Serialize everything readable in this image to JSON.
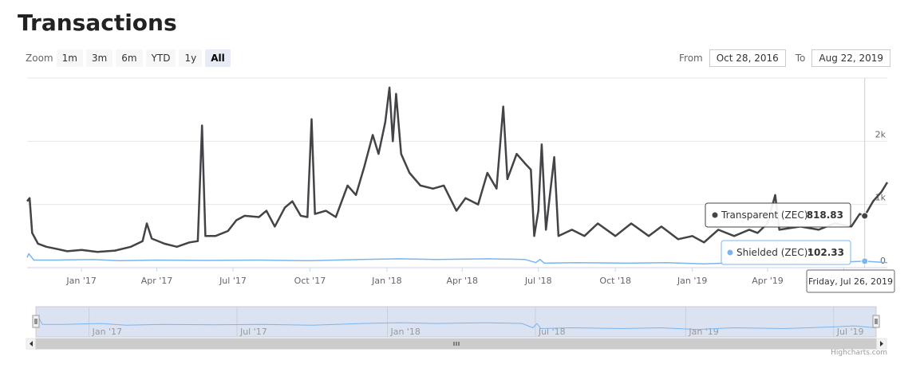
{
  "page": {
    "title": "Transactions"
  },
  "range_selector": {
    "zoom_label": "Zoom",
    "buttons": [
      {
        "label": "1m",
        "active": false
      },
      {
        "label": "3m",
        "active": false
      },
      {
        "label": "6m",
        "active": false
      },
      {
        "label": "YTD",
        "active": false
      },
      {
        "label": "1y",
        "active": false
      },
      {
        "label": "All",
        "active": true
      }
    ],
    "from_label": "From",
    "from_value": "Oct 28, 2016",
    "to_label": "To",
    "to_value": "Aug 22, 2019"
  },
  "tooltip": {
    "transparent_label": "Transparent (ZEC):",
    "transparent_value": "818.83",
    "shielded_label": "Shielded (ZEC):",
    "shielded_value": "102.33",
    "date": "Friday, Jul 26, 2019"
  },
  "credits": "Highcharts.com",
  "colors": {
    "transparent": "#434348",
    "shielded": "#7cb5ec",
    "navigator_fill": "#dbe2f2"
  },
  "chart_data": {
    "type": "line",
    "title": "Transactions",
    "x_range": [
      "2016-10-28",
      "2019-08-22"
    ],
    "ylim": [
      0,
      3000
    ],
    "y_ticks": [
      {
        "value": 0,
        "label": "0"
      },
      {
        "value": 1000,
        "label": "1k"
      },
      {
        "value": 2000,
        "label": "2k"
      }
    ],
    "x_ticks": [
      "Jan '17",
      "Apr '17",
      "Jul '17",
      "Oct '17",
      "Jan '18",
      "Apr '18",
      "Jul '18",
      "Oct '18",
      "Jan '19",
      "Apr '19",
      "Jul '19"
    ],
    "x_tick_dates": [
      "2017-01-01",
      "2017-04-01",
      "2017-07-01",
      "2017-10-01",
      "2018-01-01",
      "2018-04-01",
      "2018-07-01",
      "2018-10-01",
      "2019-01-01",
      "2019-04-01",
      "2019-07-01"
    ],
    "navigator_ticks": [
      "Jan '17",
      "Jul '17",
      "Jan '18",
      "Jul '18",
      "Jan '19",
      "Jul '19"
    ],
    "navigator_tick_dates": [
      "2017-01-01",
      "2017-07-01",
      "2018-01-01",
      "2018-07-01",
      "2019-01-01",
      "2019-07-01"
    ],
    "grid": true,
    "hover_date": "2019-07-26",
    "series": [
      {
        "name": "Transparent (ZEC)",
        "points": [
          [
            "2016-10-28",
            1050
          ],
          [
            "2016-10-31",
            1100
          ],
          [
            "2016-11-03",
            550
          ],
          [
            "2016-11-10",
            380
          ],
          [
            "2016-11-20",
            330
          ],
          [
            "2016-12-01",
            300
          ],
          [
            "2016-12-15",
            260
          ],
          [
            "2017-01-01",
            280
          ],
          [
            "2017-01-20",
            250
          ],
          [
            "2017-02-10",
            270
          ],
          [
            "2017-03-01",
            330
          ],
          [
            "2017-03-15",
            420
          ],
          [
            "2017-03-20",
            700
          ],
          [
            "2017-03-26",
            460
          ],
          [
            "2017-04-10",
            380
          ],
          [
            "2017-04-25",
            330
          ],
          [
            "2017-05-10",
            400
          ],
          [
            "2017-05-20",
            420
          ],
          [
            "2017-05-25",
            2250
          ],
          [
            "2017-05-29",
            500
          ],
          [
            "2017-06-10",
            500
          ],
          [
            "2017-06-25",
            580
          ],
          [
            "2017-07-05",
            750
          ],
          [
            "2017-07-15",
            820
          ],
          [
            "2017-08-01",
            800
          ],
          [
            "2017-08-10",
            900
          ],
          [
            "2017-08-20",
            650
          ],
          [
            "2017-09-01",
            950
          ],
          [
            "2017-09-10",
            1050
          ],
          [
            "2017-09-20",
            820
          ],
          [
            "2017-09-28",
            800
          ],
          [
            "2017-10-03",
            2350
          ],
          [
            "2017-10-07",
            850
          ],
          [
            "2017-10-20",
            900
          ],
          [
            "2017-11-01",
            800
          ],
          [
            "2017-11-15",
            1300
          ],
          [
            "2017-11-25",
            1150
          ],
          [
            "2017-12-05",
            1600
          ],
          [
            "2017-12-15",
            2100
          ],
          [
            "2017-12-22",
            1800
          ],
          [
            "2017-12-30",
            2300
          ],
          [
            "2018-01-04",
            2850
          ],
          [
            "2018-01-08",
            2000
          ],
          [
            "2018-01-12",
            2750
          ],
          [
            "2018-01-18",
            1800
          ],
          [
            "2018-01-28",
            1500
          ],
          [
            "2018-02-10",
            1300
          ],
          [
            "2018-02-25",
            1250
          ],
          [
            "2018-03-10",
            1300
          ],
          [
            "2018-03-25",
            900
          ],
          [
            "2018-04-05",
            1100
          ],
          [
            "2018-04-20",
            1000
          ],
          [
            "2018-05-01",
            1500
          ],
          [
            "2018-05-12",
            1250
          ],
          [
            "2018-05-20",
            2550
          ],
          [
            "2018-05-25",
            1400
          ],
          [
            "2018-06-05",
            1800
          ],
          [
            "2018-06-15",
            1650
          ],
          [
            "2018-06-22",
            1550
          ],
          [
            "2018-06-26",
            500
          ],
          [
            "2018-07-01",
            900
          ],
          [
            "2018-07-05",
            1950
          ],
          [
            "2018-07-10",
            600
          ],
          [
            "2018-07-20",
            1750
          ],
          [
            "2018-07-25",
            500
          ],
          [
            "2018-08-10",
            600
          ],
          [
            "2018-08-25",
            500
          ],
          [
            "2018-09-10",
            700
          ],
          [
            "2018-10-01",
            500
          ],
          [
            "2018-10-20",
            700
          ],
          [
            "2018-11-10",
            500
          ],
          [
            "2018-11-25",
            650
          ],
          [
            "2018-12-15",
            450
          ],
          [
            "2019-01-01",
            500
          ],
          [
            "2019-01-15",
            400
          ],
          [
            "2019-02-01",
            600
          ],
          [
            "2019-02-20",
            500
          ],
          [
            "2019-03-10",
            600
          ],
          [
            "2019-03-20",
            550
          ],
          [
            "2019-04-01",
            700
          ],
          [
            "2019-04-10",
            1150
          ],
          [
            "2019-04-15",
            600
          ],
          [
            "2019-05-10",
            650
          ],
          [
            "2019-06-01",
            600
          ],
          [
            "2019-06-20",
            700
          ],
          [
            "2019-07-10",
            650
          ],
          [
            "2019-07-20",
            850
          ],
          [
            "2019-07-26",
            818.83
          ],
          [
            "2019-08-05",
            1050
          ],
          [
            "2019-08-15",
            1200
          ],
          [
            "2019-08-22",
            1350
          ]
        ]
      },
      {
        "name": "Shielded (ZEC)",
        "points": [
          [
            "2016-10-28",
            160
          ],
          [
            "2016-10-30",
            220
          ],
          [
            "2016-11-05",
            120
          ],
          [
            "2016-12-01",
            120
          ],
          [
            "2017-01-15",
            130
          ],
          [
            "2017-02-15",
            110
          ],
          [
            "2017-04-01",
            120
          ],
          [
            "2017-06-01",
            115
          ],
          [
            "2017-08-01",
            120
          ],
          [
            "2017-10-01",
            110
          ],
          [
            "2017-12-01",
            130
          ],
          [
            "2018-01-15",
            140
          ],
          [
            "2018-03-01",
            130
          ],
          [
            "2018-05-01",
            140
          ],
          [
            "2018-06-15",
            130
          ],
          [
            "2018-06-28",
            80
          ],
          [
            "2018-07-03",
            130
          ],
          [
            "2018-07-08",
            70
          ],
          [
            "2018-08-15",
            80
          ],
          [
            "2018-10-15",
            70
          ],
          [
            "2018-12-01",
            80
          ],
          [
            "2019-01-15",
            60
          ],
          [
            "2019-03-01",
            80
          ],
          [
            "2019-05-01",
            70
          ],
          [
            "2019-07-01",
            90
          ],
          [
            "2019-07-26",
            102.33
          ],
          [
            "2019-08-22",
            80
          ]
        ]
      }
    ]
  }
}
